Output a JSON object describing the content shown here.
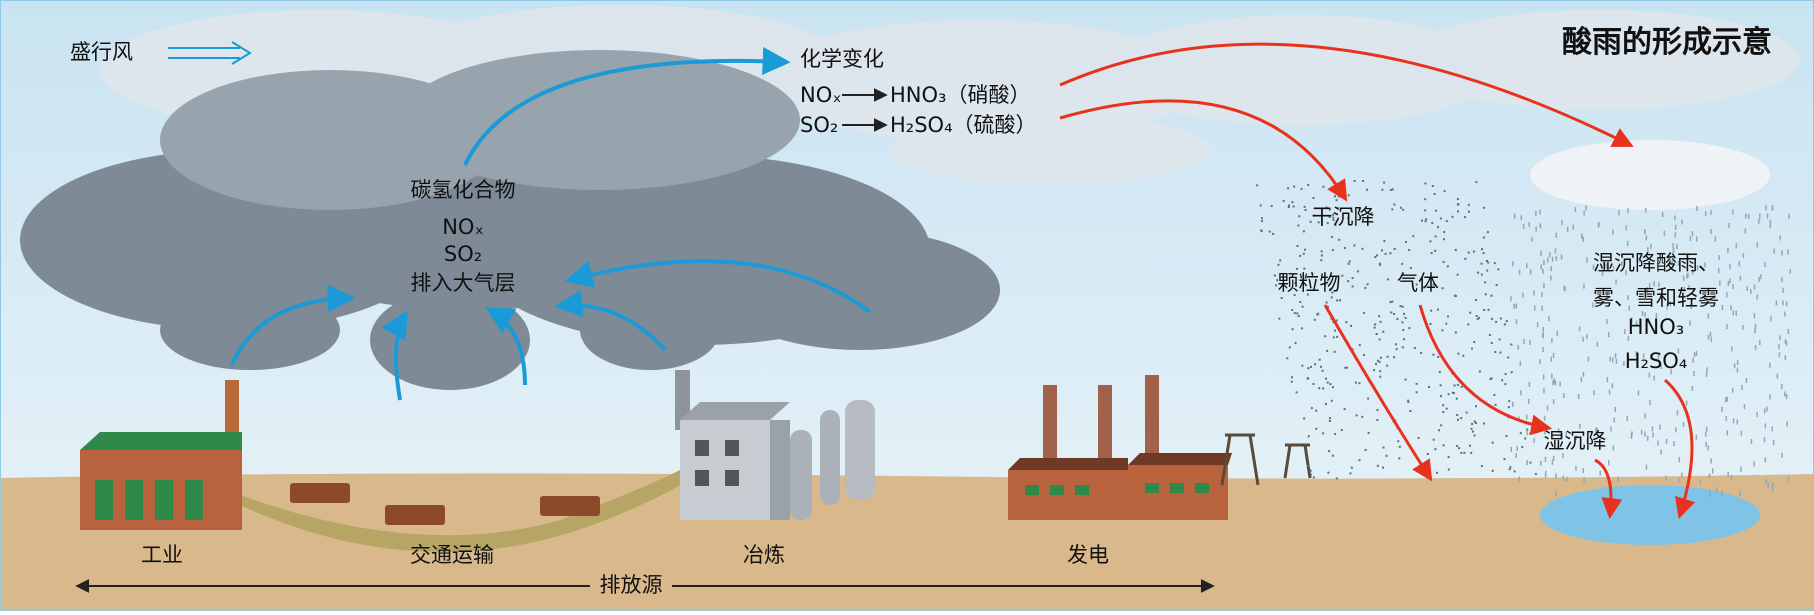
{
  "title": "酸雨的形成示意",
  "wind": "盛行风",
  "chemistry": {
    "heading": "化学变化",
    "reactions": [
      {
        "from": "NOₓ",
        "to": "HNO₃（硝酸）"
      },
      {
        "from": "SO₂",
        "to": "H₂SO₄（硫酸）"
      }
    ]
  },
  "emissions": [
    "碳氢化合物",
    "NOₓ",
    "SO₂",
    "排入大气层"
  ],
  "dry_deposition": {
    "label": "干沉降",
    "items": [
      "颗粒物",
      "气体"
    ]
  },
  "wet_deposition": {
    "lines": [
      "湿沉降酸雨、",
      "雾、雪和轻雾",
      "HNO₃",
      "H₂SO₄"
    ],
    "label": "湿沉降"
  },
  "sources": [
    "工业",
    "交通运输",
    "冶炼",
    "发电"
  ],
  "sources_label": "排放源"
}
